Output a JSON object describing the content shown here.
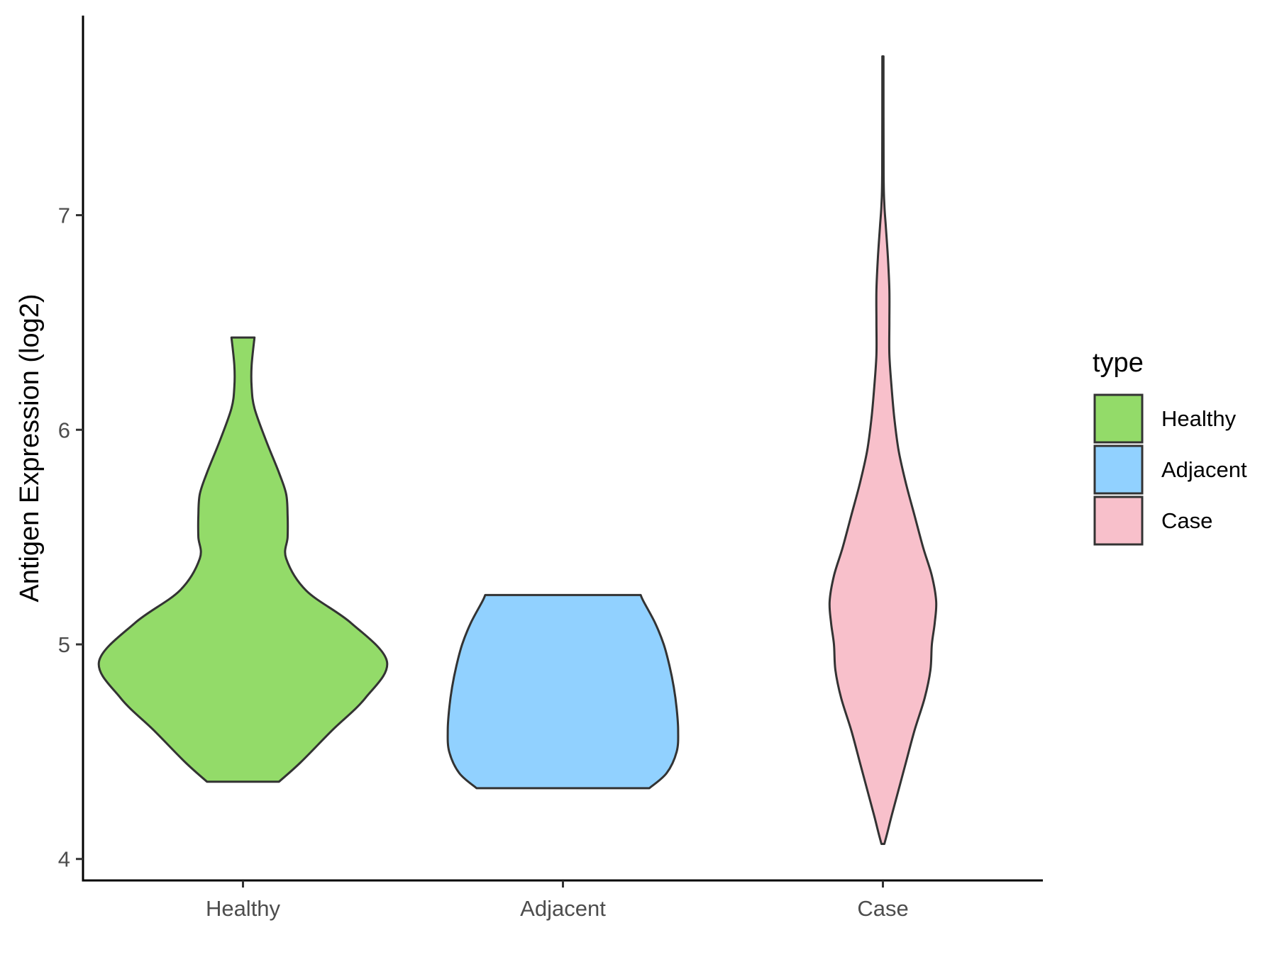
{
  "chart_data": {
    "type": "violin",
    "xlabel": "",
    "ylabel": "Antigen Expression (log2)",
    "ylim": [
      3.9,
      7.93
    ],
    "yticks": [
      4,
      5,
      6,
      7
    ],
    "categories": [
      "Healthy",
      "Adjacent",
      "Case"
    ],
    "grid": false,
    "legend": {
      "title": "type",
      "position": "right",
      "entries": [
        "Healthy",
        "Adjacent",
        "Case"
      ]
    },
    "series": [
      {
        "category": "Healthy",
        "color": "#93DB69",
        "min": 4.36,
        "max": 6.43,
        "density_profile": [
          [
            4.36,
            0.25
          ],
          [
            4.45,
            0.4
          ],
          [
            4.6,
            0.62
          ],
          [
            4.75,
            0.85
          ],
          [
            4.92,
            1.0
          ],
          [
            5.1,
            0.75
          ],
          [
            5.25,
            0.44
          ],
          [
            5.4,
            0.3
          ],
          [
            5.5,
            0.31
          ],
          [
            5.6,
            0.31
          ],
          [
            5.7,
            0.3
          ],
          [
            5.8,
            0.25
          ],
          [
            5.95,
            0.16
          ],
          [
            6.1,
            0.08
          ],
          [
            6.2,
            0.06
          ],
          [
            6.3,
            0.06
          ],
          [
            6.43,
            0.08
          ]
        ]
      },
      {
        "category": "Adjacent",
        "color": "#91D1FF",
        "min": 4.33,
        "max": 5.23,
        "density_profile": [
          [
            4.33,
            0.6
          ],
          [
            4.4,
            0.72
          ],
          [
            4.5,
            0.79
          ],
          [
            4.6,
            0.8
          ],
          [
            4.7,
            0.79
          ],
          [
            4.8,
            0.77
          ],
          [
            4.9,
            0.74
          ],
          [
            5.0,
            0.7
          ],
          [
            5.1,
            0.64
          ],
          [
            5.2,
            0.56
          ],
          [
            5.23,
            0.54
          ]
        ]
      },
      {
        "category": "Case",
        "color": "#F8C0CB",
        "min": 4.07,
        "max": 7.74,
        "density_profile": [
          [
            4.07,
            0.01
          ],
          [
            4.12,
            0.03
          ],
          [
            4.2,
            0.06
          ],
          [
            4.3,
            0.1
          ],
          [
            4.45,
            0.16
          ],
          [
            4.6,
            0.22
          ],
          [
            4.75,
            0.29
          ],
          [
            4.88,
            0.33
          ],
          [
            5.0,
            0.34
          ],
          [
            5.1,
            0.36
          ],
          [
            5.2,
            0.37
          ],
          [
            5.32,
            0.34
          ],
          [
            5.45,
            0.28
          ],
          [
            5.6,
            0.22
          ],
          [
            5.75,
            0.16
          ],
          [
            5.9,
            0.11
          ],
          [
            6.05,
            0.08
          ],
          [
            6.2,
            0.06
          ],
          [
            6.35,
            0.045
          ],
          [
            6.5,
            0.045
          ],
          [
            6.65,
            0.045
          ],
          [
            6.8,
            0.035
          ],
          [
            6.95,
            0.02
          ],
          [
            7.05,
            0.01
          ],
          [
            7.2,
            0.005
          ],
          [
            7.74,
            0.004
          ]
        ]
      }
    ]
  }
}
